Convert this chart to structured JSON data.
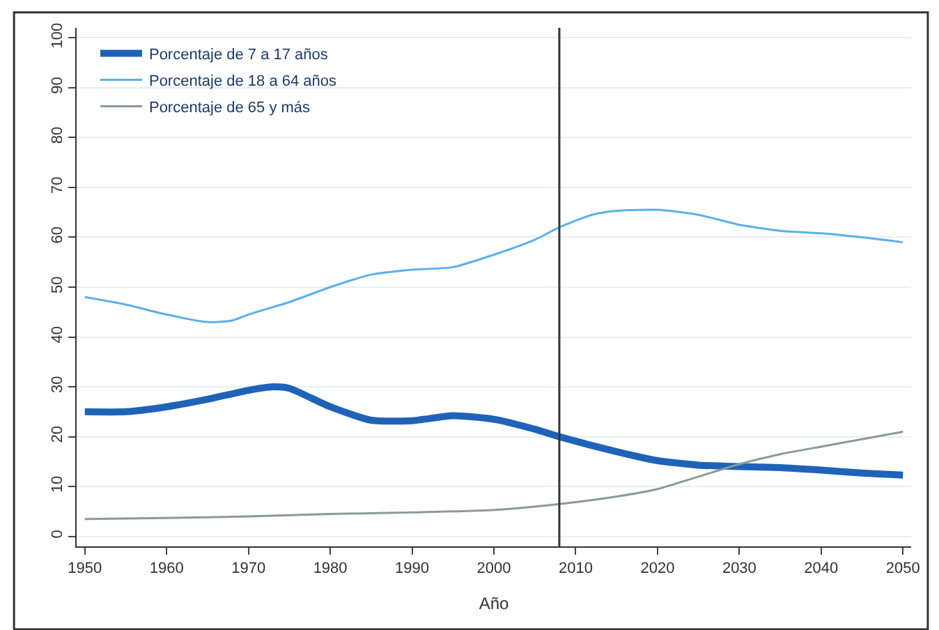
{
  "chart_data": {
    "type": "line",
    "xlabel": "Año",
    "xlim": [
      1949,
      2051
    ],
    "xticks": [
      1950,
      1960,
      1970,
      1980,
      1990,
      2000,
      2010,
      2020,
      2030,
      2040,
      2050
    ],
    "ylim": [
      -2,
      102
    ],
    "yticks": [
      0,
      10,
      20,
      30,
      40,
      50,
      60,
      70,
      80,
      90,
      100
    ],
    "grid": "y",
    "legend": "top left",
    "marker": "none",
    "line_style": "solid",
    "ref_lines": [
      {
        "axis": "x",
        "value": 2008,
        "color": "#333333"
      }
    ],
    "series": [
      {
        "name": "Porcentaje de 7 a 17 años",
        "color": "#1f63b8",
        "x": [
          1950,
          1955,
          1960,
          1965,
          1970,
          1973,
          1975,
          1980,
          1985,
          1990,
          1995,
          2000,
          2005,
          2008,
          2015,
          2020,
          2025,
          2030,
          2035,
          2040,
          2045,
          2050
        ],
        "values": [
          25,
          25,
          26,
          27.5,
          29.3,
          30,
          29.7,
          26,
          23.3,
          23.2,
          24.2,
          23.5,
          21.5,
          20,
          17,
          15.2,
          14.3,
          14,
          13.8,
          13.3,
          12.7,
          12.3
        ]
      },
      {
        "name": "Porcentaje de 18 a 64 años",
        "color": "#5ab0e8",
        "x": [
          1950,
          1955,
          1960,
          1965,
          1968,
          1970,
          1975,
          1980,
          1985,
          1990,
          1995,
          2000,
          2005,
          2008,
          2012,
          2015,
          2020,
          2025,
          2030,
          2035,
          2040,
          2045,
          2050
        ],
        "values": [
          48,
          46.5,
          44.5,
          43,
          43.3,
          44.5,
          47,
          50,
          52.5,
          53.5,
          54,
          56.5,
          59.5,
          62,
          64.5,
          65.3,
          65.5,
          64.5,
          62.5,
          61.3,
          60.8,
          60,
          59
        ]
      },
      {
        "name": "Porcentaje de 65 y más",
        "color": "#8a9a9a",
        "x": [
          1950,
          1960,
          1970,
          1980,
          1990,
          2000,
          2008,
          2015,
          2020,
          2025,
          2030,
          2035,
          2040,
          2045,
          2050
        ],
        "values": [
          3.5,
          3.7,
          4,
          4.5,
          4.8,
          5.3,
          6.5,
          8,
          9.5,
          12,
          14.5,
          16.5,
          18,
          19.5,
          21
        ]
      }
    ]
  }
}
